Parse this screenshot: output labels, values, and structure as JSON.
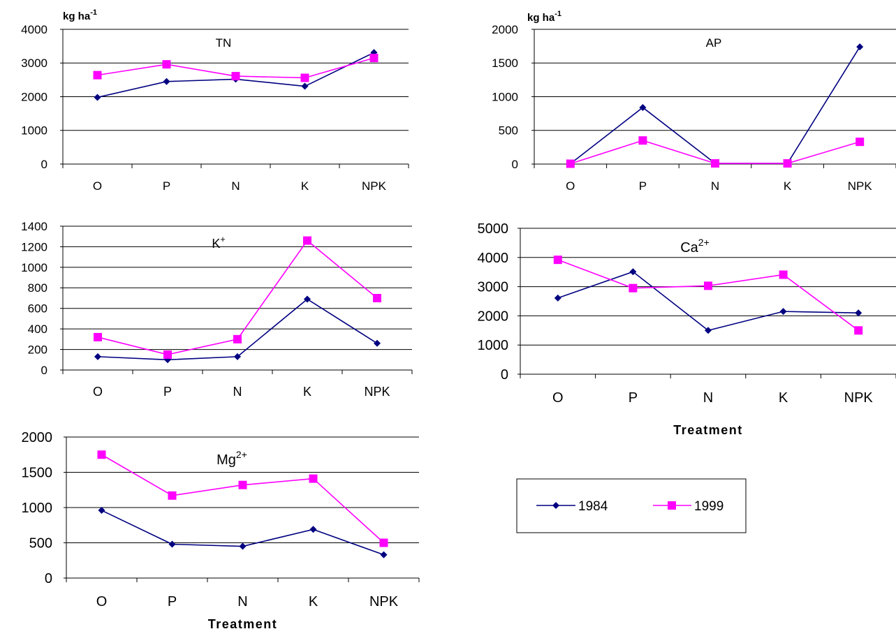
{
  "series_colors": {
    "1984": "#000080",
    "1999": "#FF00FF"
  },
  "legend": {
    "items": [
      {
        "label": "1984"
      },
      {
        "label": "1999"
      }
    ]
  },
  "chart_data": [
    {
      "type": "line",
      "title": "TN",
      "unit_label": "kg ha",
      "unit_superscript": "-1",
      "xlabel": "",
      "categories": [
        "O",
        "P",
        "N",
        "K",
        "NPK"
      ],
      "ylim": [
        0,
        4000
      ],
      "yticks": [
        "0",
        "1000",
        "2000",
        "3000",
        "4000"
      ],
      "grid": true,
      "series": [
        {
          "name": "1984",
          "values": [
            1980,
            2450,
            2520,
            2310,
            3310
          ]
        },
        {
          "name": "1999",
          "values": [
            2640,
            2960,
            2610,
            2560,
            3150
          ]
        }
      ]
    },
    {
      "type": "line",
      "title": "AP",
      "unit_label": "kg ha",
      "unit_superscript": "-1",
      "xlabel": "",
      "categories": [
        "O",
        "P",
        "N",
        "K",
        "NPK"
      ],
      "ylim": [
        0,
        2000
      ],
      "yticks": [
        "0",
        "500",
        "1000",
        "1500",
        "2000"
      ],
      "grid": true,
      "series": [
        {
          "name": "1984",
          "values": [
            5,
            840,
            10,
            10,
            1740
          ]
        },
        {
          "name": "1999",
          "values": [
            5,
            350,
            10,
            10,
            330
          ]
        }
      ]
    },
    {
      "type": "line",
      "title": "K",
      "title_superscript": "+",
      "xlabel": "",
      "categories": [
        "O",
        "P",
        "N",
        "K",
        "NPK"
      ],
      "ylim": [
        0,
        1400
      ],
      "yticks": [
        "0",
        "200",
        "400",
        "600",
        "800",
        "1000",
        "1200",
        "1400"
      ],
      "grid": true,
      "series": [
        {
          "name": "1984",
          "values": [
            130,
            100,
            130,
            690,
            260
          ]
        },
        {
          "name": "1999",
          "values": [
            320,
            150,
            300,
            1260,
            700
          ]
        }
      ]
    },
    {
      "type": "line",
      "title": "Ca",
      "title_superscript": "2+",
      "xlabel": "Treatment",
      "categories": [
        "O",
        "P",
        "N",
        "K",
        "NPK"
      ],
      "ylim": [
        0,
        5000
      ],
      "yticks": [
        "0",
        "1000",
        "2000",
        "3000",
        "4000",
        "5000"
      ],
      "grid": true,
      "series": [
        {
          "name": "1984",
          "values": [
            2610,
            3510,
            1500,
            2150,
            2100
          ]
        },
        {
          "name": "1999",
          "values": [
            3920,
            2950,
            3030,
            3410,
            1500
          ]
        }
      ]
    },
    {
      "type": "line",
      "title": "Mg",
      "title_superscript": "2+",
      "xlabel": "Treatment",
      "categories": [
        "O",
        "P",
        "N",
        "K",
        "NPK"
      ],
      "ylim": [
        0,
        2000
      ],
      "yticks": [
        "0",
        "500",
        "1000",
        "1500",
        "2000"
      ],
      "grid": true,
      "series": [
        {
          "name": "1984",
          "values": [
            960,
            480,
            450,
            690,
            330
          ]
        },
        {
          "name": "1999",
          "values": [
            1750,
            1170,
            1320,
            1410,
            500
          ]
        }
      ]
    }
  ]
}
